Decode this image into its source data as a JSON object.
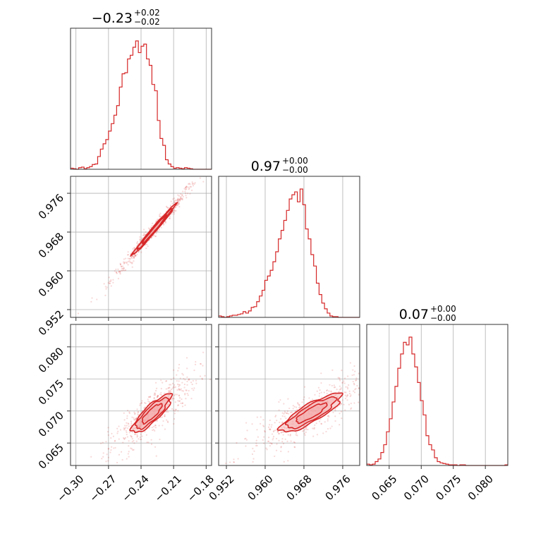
{
  "chart_data": {
    "type": "corner",
    "color": "#d62728",
    "fill_color": "#f4a6a6",
    "grid": true,
    "parameters": [
      {
        "id": "p0",
        "title_value": "−0.23",
        "title_plus": "+0.02",
        "title_minus": "−0.02",
        "range": [
          -0.305,
          -0.175
        ],
        "ticks": [
          -0.3,
          -0.27,
          -0.24,
          -0.21,
          -0.18
        ],
        "tick_labels": [
          "−0.30",
          "−0.27",
          "−0.24",
          "−0.21",
          "−0.18"
        ],
        "histogram": {
          "bin_start": -0.305,
          "bin_width": 0.0025,
          "counts": [
            2,
            1,
            0,
            3,
            4,
            1,
            3,
            5,
            9,
            10,
            24,
            38,
            48,
            56,
            72,
            86,
            102,
            120,
            155,
            180,
            182,
            208,
            215,
            230,
            242,
            220,
            232,
            236,
            208,
            196,
            160,
            148,
            92,
            58,
            45,
            18,
            10,
            5,
            2,
            3,
            2,
            1,
            3,
            2,
            1,
            0,
            0,
            0,
            0,
            0,
            0,
            0
          ]
        }
      },
      {
        "id": "p1",
        "title_value": "0.97",
        "title_plus": "+0.00",
        "title_minus": "−0.00",
        "range": [
          0.9504,
          0.9795
        ],
        "ticks": [
          0.952,
          0.96,
          0.968,
          0.976
        ],
        "tick_labels": [
          "0.952",
          "0.960",
          "0.968",
          "0.976"
        ],
        "histogram": {
          "bin_start": 0.9504,
          "bin_width": 0.00056,
          "counts": [
            2,
            1,
            0,
            1,
            2,
            3,
            3,
            4,
            5,
            8,
            6,
            9,
            14,
            15,
            22,
            30,
            38,
            52,
            58,
            66,
            78,
            92,
            110,
            122,
            136,
            150,
            166,
            172,
            176,
            162,
            180,
            158,
            124,
            110,
            88,
            72,
            48,
            32,
            20,
            12,
            6,
            2,
            1,
            1,
            0,
            0,
            0,
            0,
            0,
            0,
            0,
            0
          ]
        }
      },
      {
        "id": "p2",
        "title_value": "0.07",
        "title_plus": "+0.00",
        "title_minus": "−0.00",
        "range": [
          0.0615,
          0.0835
        ],
        "ticks": [
          0.065,
          0.07,
          0.075,
          0.08
        ],
        "tick_labels": [
          "0.065",
          "0.070",
          "0.075",
          "0.080"
        ],
        "histogram": {
          "bin_start": 0.0615,
          "bin_width": 0.00044,
          "counts": [
            2,
            1,
            2,
            6,
            10,
            20,
            32,
            52,
            72,
            98,
            122,
            150,
            172,
            190,
            186,
            198,
            172,
            152,
            128,
            100,
            78,
            46,
            32,
            24,
            12,
            6,
            4,
            3,
            2,
            1,
            1,
            1,
            0,
            1,
            1,
            0,
            0,
            0,
            0,
            0,
            0,
            0,
            0,
            0,
            0,
            0,
            0,
            0,
            0,
            1
          ]
        }
      }
    ],
    "pairs": [
      {
        "x_param": 0,
        "y_param": 1,
        "mean": [
          -0.228,
          0.9685
        ],
        "major_axis": [
          0.02,
          0.0052
        ],
        "minor_axis": [
          -0.00018,
          0.0007
        ],
        "levels": [
          0.55,
          0.8,
          1.0
        ],
        "point_spread": 2.0
      },
      {
        "x_param": 0,
        "y_param": 2,
        "mean": [
          -0.23,
          0.0696
        ],
        "major_axis": [
          0.018,
          0.0028
        ],
        "minor_axis": [
          -0.0035,
          0.0011
        ],
        "levels": [
          0.5,
          0.8,
          1.0
        ],
        "point_spread": 2.2
      },
      {
        "x_param": 1,
        "y_param": 2,
        "mean": [
          0.9695,
          0.0697
        ],
        "major_axis": [
          0.0062,
          0.0028
        ],
        "minor_axis": [
          -0.0012,
          0.0011
        ],
        "levels": [
          0.5,
          0.8,
          1.0
        ],
        "point_spread": 2.2
      }
    ]
  }
}
